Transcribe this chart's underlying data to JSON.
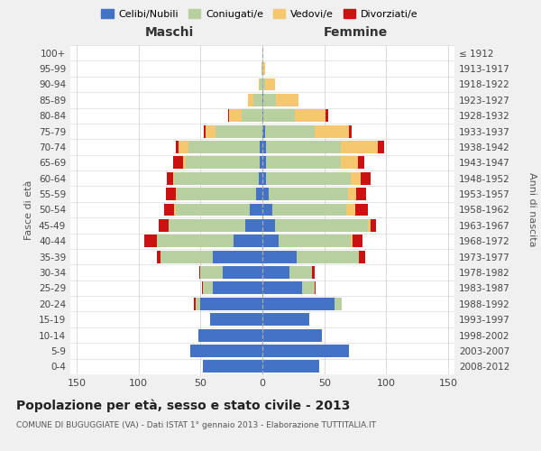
{
  "age_groups": [
    "100+",
    "95-99",
    "90-94",
    "85-89",
    "80-84",
    "75-79",
    "70-74",
    "65-69",
    "60-64",
    "55-59",
    "50-54",
    "45-49",
    "40-44",
    "35-39",
    "30-34",
    "25-29",
    "20-24",
    "15-19",
    "10-14",
    "5-9",
    "0-4"
  ],
  "birth_years": [
    "≤ 1912",
    "1913-1917",
    "1918-1922",
    "1923-1927",
    "1928-1932",
    "1933-1937",
    "1938-1942",
    "1943-1947",
    "1948-1952",
    "1953-1957",
    "1958-1962",
    "1963-1967",
    "1968-1972",
    "1973-1977",
    "1978-1982",
    "1983-1987",
    "1988-1992",
    "1993-1997",
    "1998-2002",
    "2003-2007",
    "2008-2012"
  ],
  "colors": {
    "celibe": "#4472c4",
    "coniugato": "#b8cfa0",
    "vedovo": "#f5c870",
    "divorziato": "#cc1111"
  },
  "males_celibe": [
    0,
    0,
    0,
    0,
    0,
    0,
    2,
    2,
    3,
    5,
    10,
    14,
    23,
    40,
    32,
    40,
    50,
    42,
    52,
    58,
    48
  ],
  "males_coniugato": [
    0,
    1,
    2,
    7,
    17,
    38,
    58,
    60,
    68,
    64,
    60,
    62,
    62,
    42,
    18,
    8,
    4,
    0,
    0,
    0,
    0
  ],
  "males_vedovo": [
    0,
    0,
    1,
    5,
    10,
    8,
    8,
    2,
    1,
    1,
    1,
    0,
    0,
    0,
    0,
    0,
    0,
    0,
    0,
    0,
    0
  ],
  "males_divorziato": [
    0,
    0,
    0,
    0,
    1,
    1,
    2,
    8,
    5,
    8,
    8,
    8,
    10,
    3,
    1,
    1,
    1,
    0,
    0,
    0,
    0
  ],
  "females_nubile": [
    0,
    0,
    0,
    1,
    1,
    2,
    3,
    3,
    3,
    5,
    8,
    10,
    13,
    28,
    22,
    32,
    58,
    38,
    48,
    70,
    46
  ],
  "females_coniugata": [
    0,
    0,
    2,
    10,
    25,
    40,
    60,
    60,
    68,
    64,
    60,
    75,
    58,
    50,
    18,
    10,
    6,
    0,
    0,
    0,
    0
  ],
  "females_vedova": [
    0,
    2,
    8,
    18,
    25,
    28,
    30,
    14,
    8,
    7,
    7,
    2,
    2,
    0,
    0,
    0,
    0,
    0,
    0,
    0,
    0
  ],
  "females_divorziata": [
    0,
    0,
    0,
    0,
    2,
    2,
    5,
    5,
    8,
    8,
    10,
    5,
    8,
    5,
    2,
    1,
    0,
    0,
    0,
    0,
    0
  ],
  "xlim": 155,
  "title": "Popolazione per età, sesso e stato civile - 2013",
  "subtitle": "COMUNE DI BUGUGGIATE (VA) - Dati ISTAT 1° gennaio 2013 - Elaborazione TUTTITALIA.IT",
  "ylabel_left": "Fasce di età",
  "ylabel_right": "Anni di nascita",
  "xlabel_left": "Maschi",
  "xlabel_right": "Femmine",
  "background_color": "#f0f0f0",
  "plot_background": "#ffffff"
}
